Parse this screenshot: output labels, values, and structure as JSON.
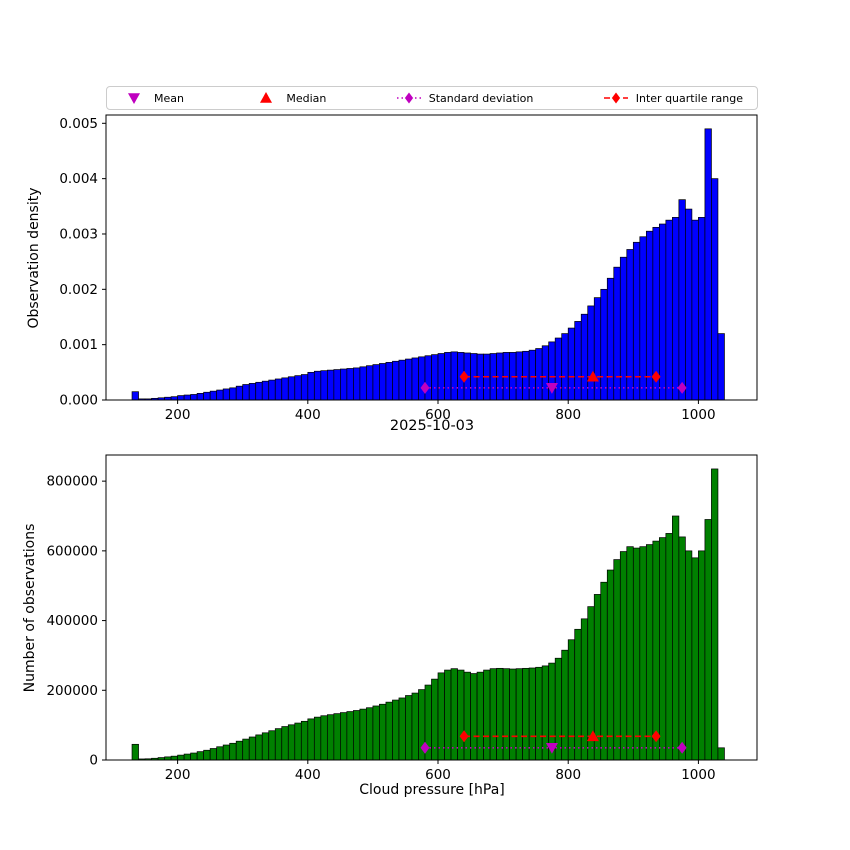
{
  "figure": {
    "title": "2025-10-03",
    "xlabel": "Cloud pressure [hPa]",
    "background": "#ffffff"
  },
  "legend": {
    "items": [
      {
        "label": "Mean",
        "marker": "triangle-down",
        "color": "#bf00bf"
      },
      {
        "label": "Median",
        "marker": "triangle-up",
        "color": "#ff0000"
      },
      {
        "label": "Standard deviation",
        "marker": "diamond-dotted",
        "color": "#bf00bf"
      },
      {
        "label": "Inter quartile range",
        "marker": "diamond-dashed",
        "color": "#ff0000"
      }
    ]
  },
  "chart_data": [
    {
      "type": "bar",
      "name": "observation-density-histogram",
      "ylabel": "Observation density",
      "bar_color": "#0000ff",
      "edge_color": "#000000",
      "xlim": [
        90,
        1090
      ],
      "ylim": [
        0,
        0.00515
      ],
      "xticks": [
        200,
        400,
        600,
        800,
        1000
      ],
      "yticks": [
        0,
        0.001,
        0.002,
        0.003,
        0.004,
        0.005
      ],
      "ytick_labels": [
        "0.000",
        "0.001",
        "0.002",
        "0.003",
        "0.004",
        "0.005"
      ],
      "bin_start": 130,
      "bin_width": 10,
      "values": [
        0.00015,
        2e-05,
        2e-05,
        3e-05,
        4e-05,
        5e-05,
        6e-05,
        8e-05,
        9e-05,
        0.0001,
        0.00012,
        0.00014,
        0.00016,
        0.00018,
        0.0002,
        0.00022,
        0.00025,
        0.00028,
        0.0003,
        0.00032,
        0.00034,
        0.00036,
        0.00038,
        0.0004,
        0.00042,
        0.00044,
        0.00046,
        0.0005,
        0.00052,
        0.00053,
        0.00054,
        0.00055,
        0.00056,
        0.00057,
        0.00058,
        0.0006,
        0.00062,
        0.00064,
        0.00066,
        0.00068,
        0.0007,
        0.00072,
        0.00074,
        0.00076,
        0.00078,
        0.0008,
        0.00082,
        0.00084,
        0.00086,
        0.00087,
        0.00086,
        0.00085,
        0.00084,
        0.00083,
        0.00083,
        0.00084,
        0.00085,
        0.00086,
        0.00086,
        0.00087,
        0.00088,
        0.0009,
        0.00093,
        0.00098,
        0.00105,
        0.00112,
        0.0012,
        0.0013,
        0.00142,
        0.00155,
        0.0017,
        0.00185,
        0.002,
        0.0022,
        0.0024,
        0.00258,
        0.00272,
        0.00285,
        0.00295,
        0.00305,
        0.00312,
        0.00318,
        0.00325,
        0.0033,
        0.00362,
        0.00345,
        0.00325,
        0.0033,
        0.0049,
        0.004,
        0.0012
      ],
      "markers": {
        "mean": {
          "x": 775,
          "y": 0.00022,
          "color": "#bf00bf",
          "marker": "triangle-down"
        },
        "median": {
          "x": 838,
          "y": 0.00042,
          "color": "#ff0000",
          "marker": "triangle-up"
        },
        "std": {
          "x1": 580,
          "x2": 975,
          "y": 0.00022,
          "color": "#bf00bf",
          "style": "dotted"
        },
        "iqr": {
          "x1": 640,
          "x2": 935,
          "y": 0.00042,
          "color": "#ff0000",
          "style": "dashed"
        }
      }
    },
    {
      "type": "bar",
      "name": "number-of-observations-histogram",
      "title": "2025-10-03",
      "xlabel": "Cloud pressure [hPa]",
      "ylabel": "Number of observations",
      "bar_color": "#008000",
      "edge_color": "#000000",
      "xlim": [
        90,
        1090
      ],
      "ylim": [
        0,
        875000
      ],
      "xticks": [
        200,
        400,
        600,
        800,
        1000
      ],
      "yticks": [
        0,
        200000,
        400000,
        600000,
        800000
      ],
      "ytick_labels": [
        "0",
        "200000",
        "400000",
        "600000",
        "800000"
      ],
      "bin_start": 130,
      "bin_width": 10,
      "values": [
        45000,
        3000,
        3500,
        5000,
        7000,
        9000,
        11000,
        14000,
        17000,
        20000,
        24000,
        28000,
        33000,
        38000,
        43000,
        48000,
        54000,
        60000,
        66000,
        72000,
        78000,
        84000,
        90000,
        96000,
        101000,
        106000,
        111000,
        118000,
        123000,
        127000,
        130000,
        133000,
        136000,
        139000,
        142000,
        146000,
        150000,
        155000,
        160000,
        166000,
        172000,
        178000,
        185000,
        192000,
        202000,
        215000,
        232000,
        250000,
        258000,
        262000,
        258000,
        252000,
        248000,
        252000,
        258000,
        262000,
        263000,
        262000,
        261000,
        262000,
        263000,
        264000,
        266000,
        270000,
        278000,
        292000,
        315000,
        345000,
        375000,
        405000,
        440000,
        475000,
        510000,
        545000,
        575000,
        598000,
        612000,
        608000,
        612000,
        618000,
        628000,
        638000,
        650000,
        700000,
        640000,
        600000,
        580000,
        600000,
        690000,
        835000,
        35000
      ],
      "markers": {
        "mean": {
          "x": 775,
          "y": 35000,
          "color": "#bf00bf",
          "marker": "triangle-down"
        },
        "median": {
          "x": 838,
          "y": 68000,
          "color": "#ff0000",
          "marker": "triangle-up"
        },
        "std": {
          "x1": 580,
          "x2": 975,
          "y": 35000,
          "color": "#bf00bf",
          "style": "dotted"
        },
        "iqr": {
          "x1": 640,
          "x2": 935,
          "y": 68000,
          "color": "#ff0000",
          "style": "dashed"
        }
      }
    }
  ]
}
